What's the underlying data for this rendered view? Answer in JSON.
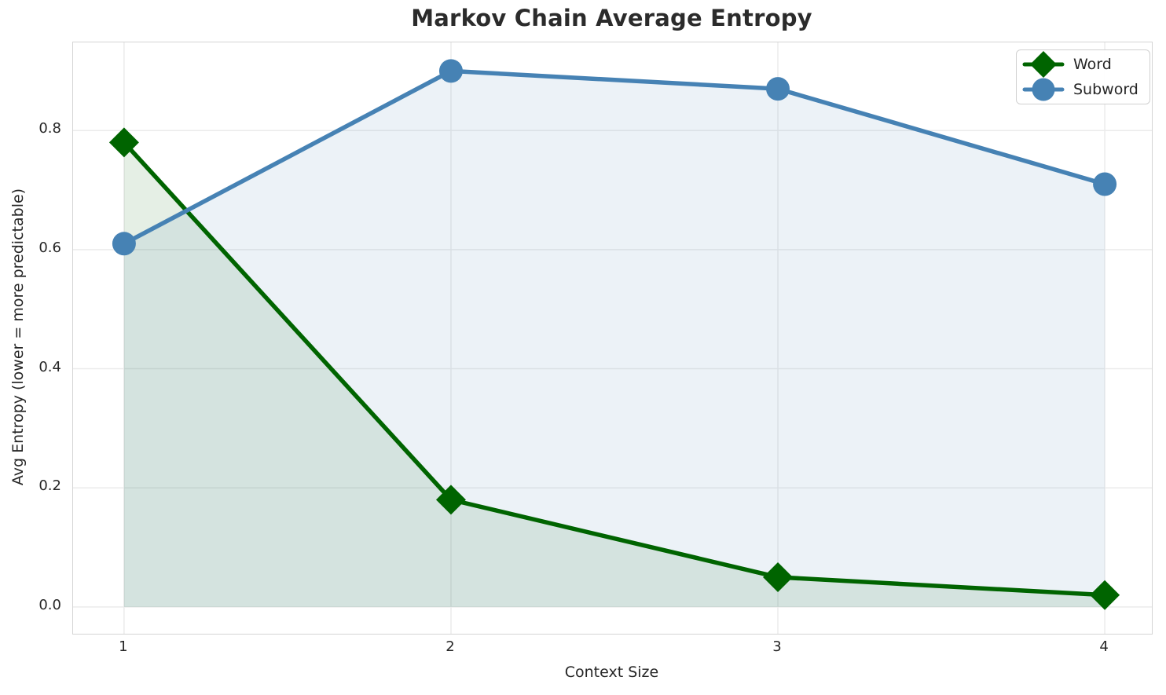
{
  "title": "Markov Chain Average Entropy",
  "colors": {
    "word": "#006400",
    "subword": "#4682b4",
    "grid": "#ebebeb",
    "spine": "#d4d4d4",
    "text": "#262626",
    "title_text": "#2b2b2b",
    "legend_border": "#d0d0d0"
  },
  "legend": {
    "position": "upper right",
    "items": [
      {
        "label": "Word",
        "marker": "diamond-icon"
      },
      {
        "label": "Subword",
        "marker": "circle-icon"
      }
    ]
  },
  "chart_data": {
    "type": "line",
    "title": "Markov Chain Average Entropy",
    "xlabel": "Context Size",
    "ylabel": "Avg Entropy (lower = more predictable)",
    "x": [
      1,
      2,
      3,
      4
    ],
    "series": [
      {
        "name": "Word",
        "values": [
          0.78,
          0.18,
          0.05,
          0.02
        ],
        "color": "#006400",
        "marker": "diamond",
        "fill_to_zero": true,
        "fill_opacity": 0.1
      },
      {
        "name": "Subword",
        "values": [
          0.61,
          0.9,
          0.87,
          0.71
        ],
        "color": "#4682b4",
        "marker": "circle",
        "fill_to_zero": true,
        "fill_opacity": 0.1
      }
    ],
    "xticks": [
      1,
      2,
      3,
      4
    ],
    "xtick_labels": [
      "1",
      "2",
      "3",
      "4"
    ],
    "ytick_values": [
      0.0,
      0.2,
      0.4,
      0.6,
      0.8
    ],
    "yticks": [
      "0.0",
      "0.2",
      "0.4",
      "0.6",
      "0.8"
    ],
    "xlim": [
      0.844,
      4.144
    ],
    "ylim": [
      -0.045,
      0.948
    ],
    "grid": true,
    "legend_position": "upper right"
  }
}
